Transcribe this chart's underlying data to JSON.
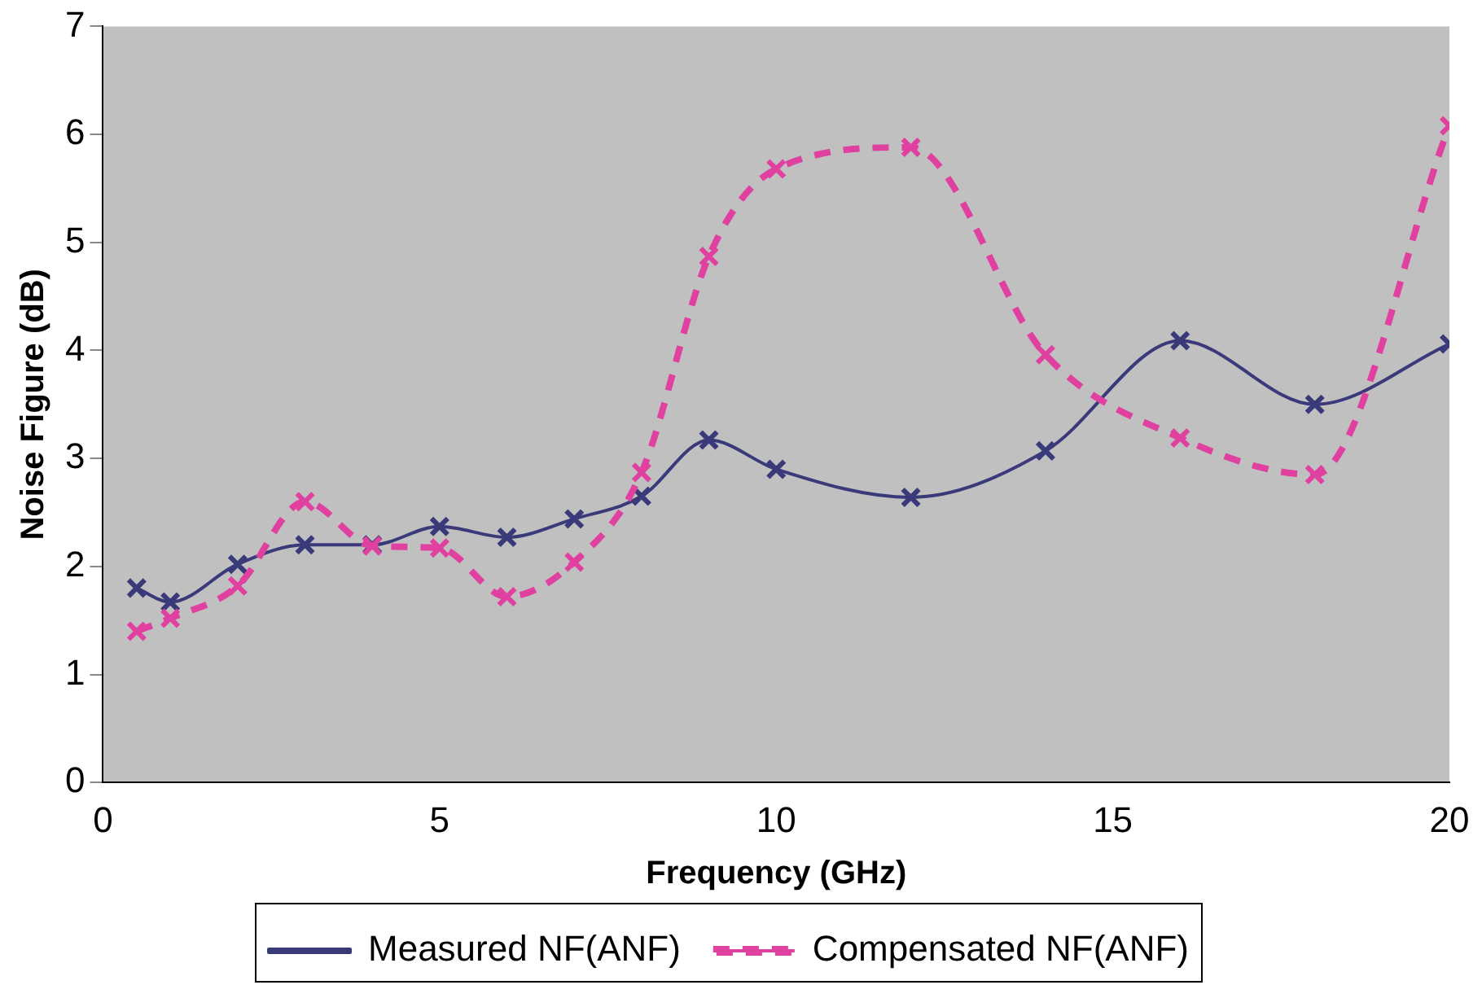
{
  "chart_data": {
    "type": "line",
    "xlabel": "Frequency (GHz)",
    "ylabel": "Noise Figure (dB)",
    "x": [
      0.5,
      1,
      2,
      3,
      4,
      5,
      6,
      7,
      8,
      9,
      10,
      12,
      14,
      16,
      18,
      20
    ],
    "series": [
      {
        "name": "Measured NF(ANF)",
        "color": "#3a3a7a",
        "line_style": "solid",
        "values": [
          1.8,
          1.67,
          2.02,
          2.2,
          2.2,
          2.37,
          2.27,
          2.44,
          2.65,
          3.17,
          2.9,
          2.64,
          3.07,
          4.09,
          3.5,
          4.06
        ]
      },
      {
        "name": "Compensated NF(ANF)",
        "color": "#e040a0",
        "line_style": "dashed",
        "values": [
          1.4,
          1.52,
          1.82,
          2.6,
          2.19,
          2.17,
          1.72,
          2.04,
          2.87,
          4.87,
          5.68,
          5.88,
          3.96,
          3.19,
          2.85,
          6.08
        ]
      }
    ],
    "xlim": [
      0,
      20
    ],
    "xticks": [
      0,
      5,
      10,
      15,
      20
    ],
    "ylim": [
      0,
      7
    ],
    "yticks": [
      0,
      1,
      2,
      3,
      4,
      5,
      6,
      7
    ],
    "grid": false,
    "legend": "bottom",
    "marker": "cross"
  }
}
